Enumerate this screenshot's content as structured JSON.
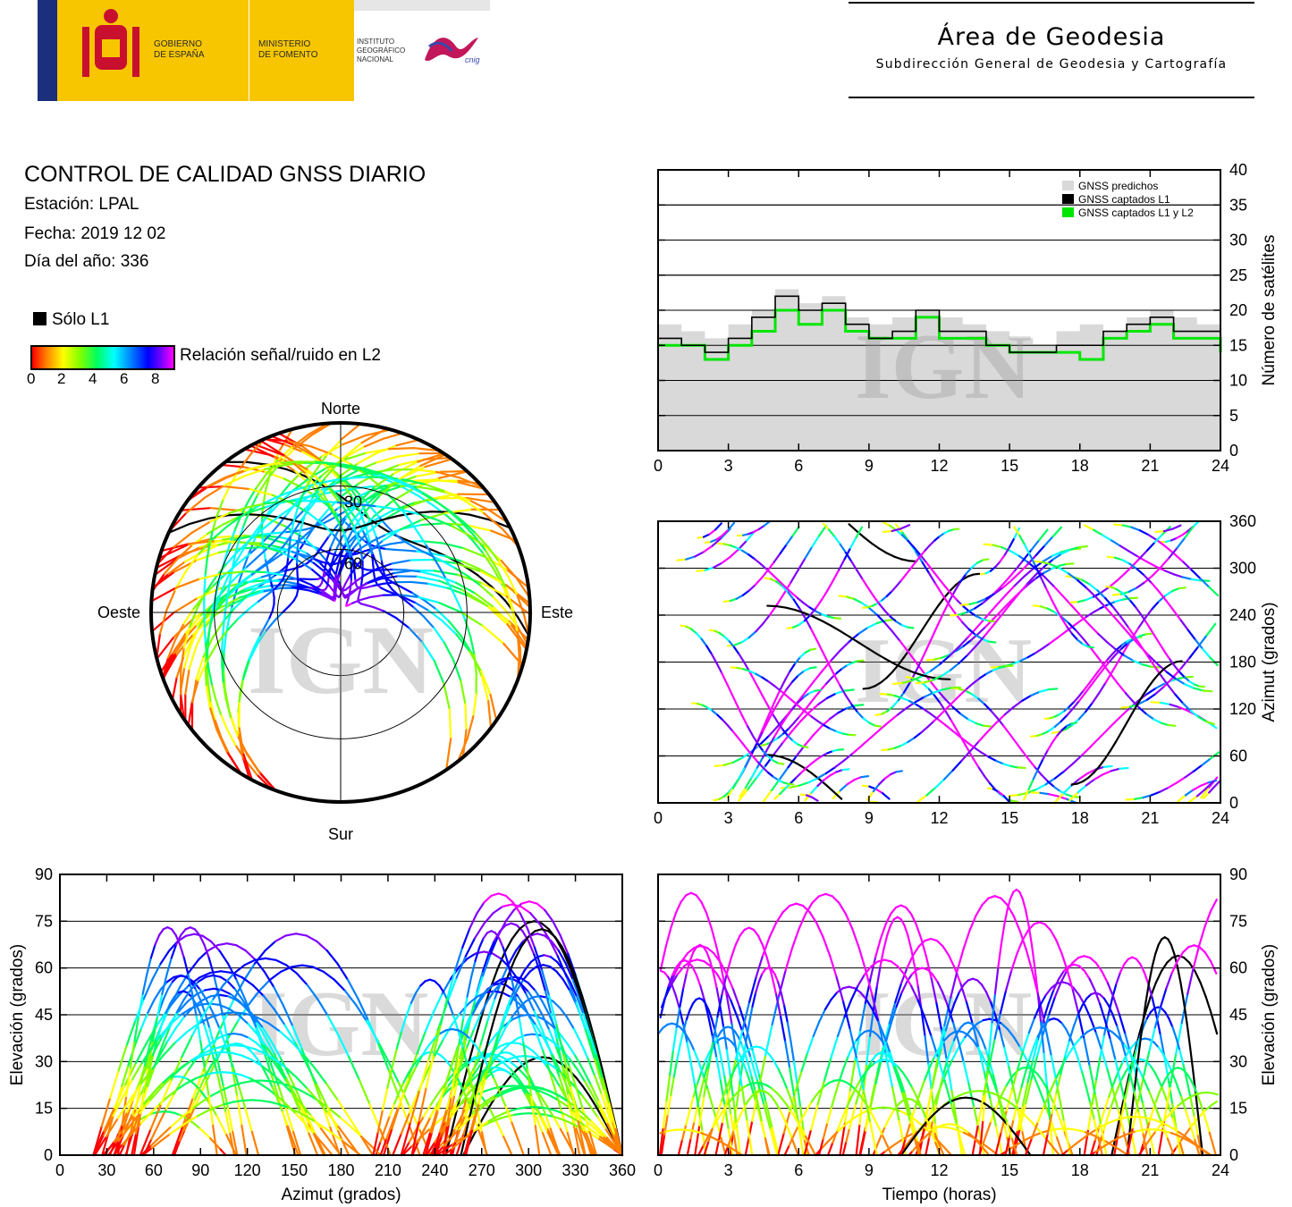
{
  "header": {
    "org_line1": "GOBIERNO",
    "org_line2": "DE ESPAÑA",
    "ministry_line1": "MINISTERIO",
    "ministry_line2": "DE FOMENTO",
    "inst_line1": "INSTITUTO",
    "inst_line2": "GEOGRÁFICO",
    "inst_line3": "NACIONAL",
    "cnig": "cnig",
    "area_title": "Área de Geodesia",
    "area_subtitle": "Subdirección General de Geodesia y Cartografía"
  },
  "report": {
    "title": "CONTROL DE CALIDAD GNSS DIARIO",
    "station": "Estación: LPAL",
    "date": "Fecha: 2019 12 02",
    "doy": "Día del año: 336"
  },
  "legend": {
    "l1_only": "Sólo L1",
    "snr_label": "Relación señal/ruido en L2",
    "snr_ticks": [
      "0",
      "2",
      "4",
      "6",
      "8"
    ]
  },
  "watermark": "IGN",
  "colors": {
    "predicted": "#d9d9d9",
    "l1": "#000000",
    "l1l2": "#00e600",
    "snr_scale": [
      "#ff0000",
      "#ff8000",
      "#ffff00",
      "#80ff00",
      "#00ff60",
      "#00ffff",
      "#0080ff",
      "#0000ff",
      "#8000ff",
      "#ff00ff"
    ]
  },
  "chart_data": [
    {
      "id": "satellite-count",
      "type": "line",
      "xlim": [
        0,
        24
      ],
      "ylim": [
        0,
        40
      ],
      "x_ticks": [
        "0",
        "3",
        "6",
        "9",
        "12",
        "15",
        "18",
        "21",
        "24"
      ],
      "y_ticks": [
        "0",
        "5",
        "10",
        "15",
        "20",
        "25",
        "30",
        "35",
        "40"
      ],
      "ylabel": "Número de satélites",
      "grid": true,
      "legend_position": "top-right",
      "x": [
        0,
        1,
        2,
        3,
        4,
        5,
        6,
        7,
        8,
        9,
        10,
        11,
        12,
        13,
        14,
        15,
        16,
        17,
        18,
        19,
        20,
        21,
        22,
        23,
        24
      ],
      "series": [
        {
          "name": "GNSS predichos",
          "values": [
            18,
            17,
            16,
            18,
            20,
            23,
            21,
            22,
            19,
            18,
            19,
            20,
            19,
            18,
            17,
            16,
            15,
            17,
            18,
            17,
            19,
            20,
            19,
            18,
            17
          ]
        },
        {
          "name": "GNSS captados L1",
          "values": [
            16,
            15,
            14,
            16,
            19,
            22,
            20,
            21,
            18,
            16,
            17,
            20,
            17,
            17,
            15,
            14,
            14,
            15,
            15,
            17,
            18,
            19,
            17,
            17,
            15
          ]
        },
        {
          "name": "GNSS captados L1 y L2",
          "values": [
            15,
            15,
            13,
            15,
            17,
            20,
            18,
            20,
            17,
            16,
            16,
            19,
            16,
            16,
            15,
            14,
            14,
            14,
            13,
            16,
            17,
            18,
            16,
            16,
            14
          ]
        }
      ]
    },
    {
      "id": "skyplot",
      "type": "scatter",
      "labels": {
        "north": "Norte",
        "south": "Sur",
        "east": "Este",
        "west": "Oeste"
      },
      "ring_labels": [
        "30",
        "60"
      ]
    },
    {
      "id": "azimuth-vs-time",
      "type": "scatter",
      "xlim": [
        0,
        24
      ],
      "ylim": [
        0,
        360
      ],
      "x_ticks": [
        "0",
        "3",
        "6",
        "9",
        "12",
        "15",
        "18",
        "21",
        "24"
      ],
      "y_ticks": [
        "0",
        "60",
        "120",
        "180",
        "240",
        "300",
        "360"
      ],
      "ylabel": "Azimut (grados)",
      "grid": true
    },
    {
      "id": "elevation-vs-azimuth",
      "type": "scatter",
      "xlim": [
        0,
        360
      ],
      "ylim": [
        0,
        90
      ],
      "x_ticks": [
        "0",
        "30",
        "60",
        "90",
        "120",
        "150",
        "180",
        "210",
        "240",
        "270",
        "300",
        "330",
        "360"
      ],
      "y_ticks": [
        "0",
        "15",
        "30",
        "45",
        "60",
        "75",
        "90"
      ],
      "xlabel": "Azimut (grados)",
      "ylabel": "Elevación (grados)",
      "grid": true
    },
    {
      "id": "elevation-vs-time",
      "type": "scatter",
      "xlim": [
        0,
        24
      ],
      "ylim": [
        0,
        90
      ],
      "x_ticks": [
        "0",
        "3",
        "6",
        "9",
        "12",
        "15",
        "18",
        "21",
        "24"
      ],
      "y_ticks": [
        "0",
        "15",
        "30",
        "45",
        "60",
        "75",
        "90"
      ],
      "xlabel": "Tiempo (horas)",
      "ylabel": "Elevación (grados)",
      "grid": true
    }
  ]
}
